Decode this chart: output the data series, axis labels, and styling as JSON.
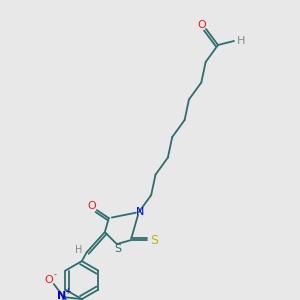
{
  "bg_color": "#e8e8e8",
  "bond_color": "#2d6e6e",
  "atom_colors": {
    "O": "#ff1a1a",
    "H": "#7a9090",
    "N": "#0000ee",
    "S_yellow": "#bbbb00",
    "S_ring": "#2d6e6e",
    "NO2_N": "#0000ee",
    "NO2_O": "#ff1a1a"
  },
  "figsize": [
    3.0,
    3.0
  ],
  "dpi": 100
}
